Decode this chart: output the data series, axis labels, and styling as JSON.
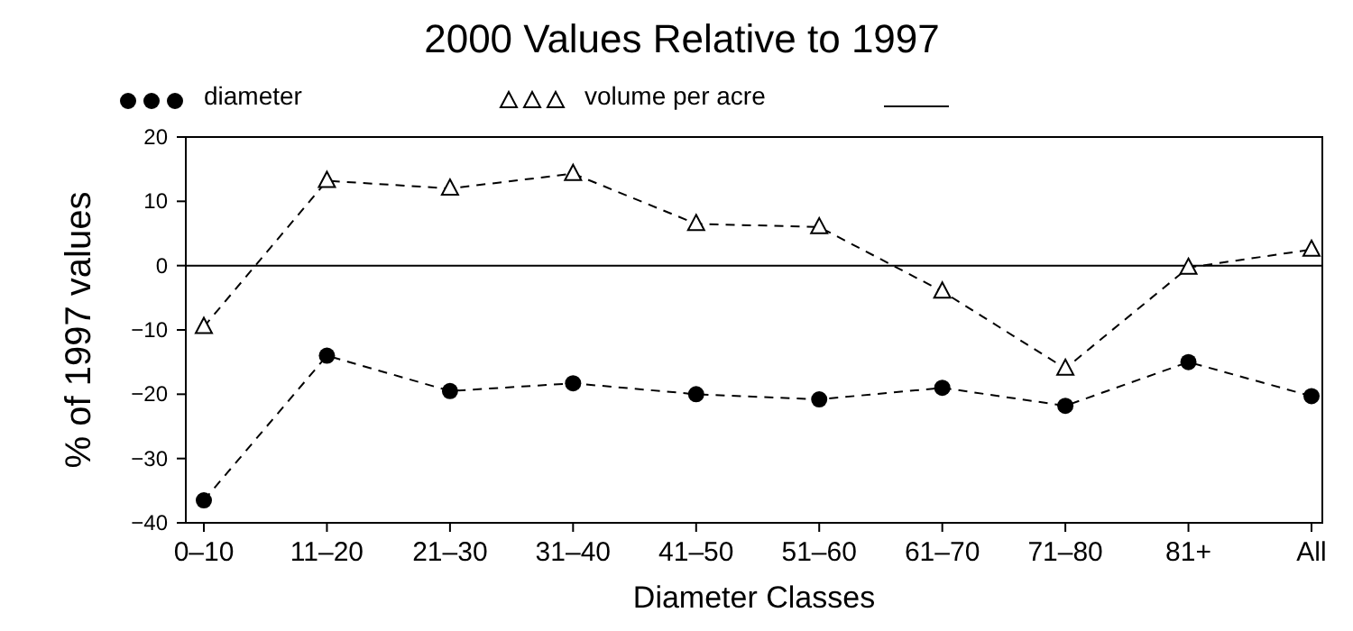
{
  "chart_data": {
    "type": "line",
    "title": "2000 Values Relative to 1997",
    "xlabel": "Diameter Classes",
    "ylabel": "% of 1997 values",
    "categories": [
      "0–10",
      "11–20",
      "21–30",
      "31–40",
      "41–50",
      "51–60",
      "61–70",
      "71–80",
      "81+",
      "All"
    ],
    "series": [
      {
        "name": "diameter",
        "color": "#000000",
        "marker": "circle",
        "line_style": "dashed",
        "values": [
          -36.5,
          -14,
          -19.5,
          -18.3,
          -20,
          -20.8,
          -19,
          -21.8,
          -15,
          -20.3
        ]
      },
      {
        "name": "volume per acre",
        "color": "#000000",
        "marker": "triangle",
        "line_style": "dashed",
        "values": [
          -9.5,
          13.2,
          12,
          14.3,
          6.5,
          6,
          -4,
          -16,
          -0.3,
          2.5
        ]
      }
    ],
    "ylim": [
      -40,
      20
    ],
    "yticks": [
      -40,
      -30,
      -20,
      -10,
      0,
      10,
      20
    ],
    "grid": false,
    "legend": "top",
    "ref_lines": [
      {
        "axis": "y",
        "value": 0,
        "color": "#000000",
        "line_style": "solid"
      }
    ]
  }
}
